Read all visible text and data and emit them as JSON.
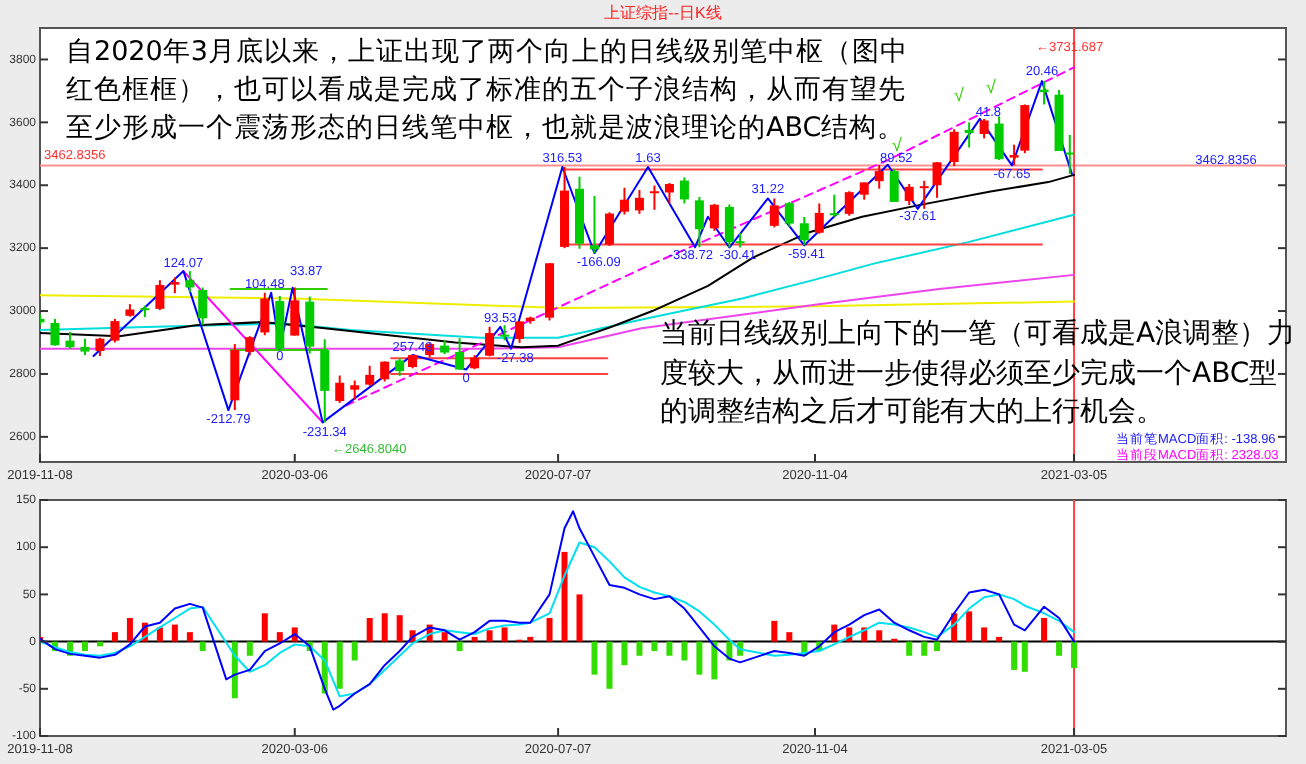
{
  "chart_data": [
    {
      "type": "candlestick",
      "title": "上证综指--日K线",
      "x": [
        "2019-11-08",
        "2019-11-15",
        "2019-11-22",
        "2019-11-29",
        "2019-12-06",
        "2019-12-13",
        "2019-12-20",
        "2019-12-27",
        "2020-01-03",
        "2020-01-10",
        "2020-01-17",
        "2020-01-23",
        "2020-02-07",
        "2020-02-14",
        "2020-02-21",
        "2020-02-28",
        "2020-03-06",
        "2020-03-13",
        "2020-03-20",
        "2020-03-27",
        "2020-04-03",
        "2020-04-10",
        "2020-04-17",
        "2020-04-24",
        "2020-04-30",
        "2020-05-08",
        "2020-05-15",
        "2020-05-22",
        "2020-05-29",
        "2020-06-05",
        "2020-06-12",
        "2020-06-19",
        "2020-06-24",
        "2020-07-03",
        "2020-07-10",
        "2020-07-17",
        "2020-07-24",
        "2020-07-31",
        "2020-08-07",
        "2020-08-14",
        "2020-08-21",
        "2020-08-28",
        "2020-09-04",
        "2020-09-11",
        "2020-09-18",
        "2020-09-25",
        "2020-09-30",
        "2020-10-16",
        "2020-10-23",
        "2020-10-30",
        "2020-11-06",
        "2020-11-13",
        "2020-11-20",
        "2020-11-27",
        "2020-12-04",
        "2020-12-11",
        "2020-12-18",
        "2020-12-25",
        "2020-12-31",
        "2021-01-08",
        "2021-01-15",
        "2021-01-22",
        "2021-01-29",
        "2021-02-05",
        "2021-02-10",
        "2021-02-19",
        "2021-02-26",
        "2021-03-03"
      ],
      "ohlc": [
        [
          2975,
          2990,
          2955,
          2964
        ],
        [
          2962,
          2975,
          2890,
          2891
        ],
        [
          2906,
          2934,
          2880,
          2885
        ],
        [
          2886,
          2912,
          2860,
          2871
        ],
        [
          2873,
          2915,
          2857,
          2912
        ],
        [
          2906,
          2975,
          2900,
          2968
        ],
        [
          2985,
          3022,
          2982,
          3005
        ],
        [
          3009,
          3017,
          2981,
          3005
        ],
        [
          3007,
          3098,
          3003,
          3083
        ],
        [
          3084,
          3107,
          3057,
          3092
        ],
        [
          3098,
          3127,
          3060,
          3075
        ],
        [
          3067,
          3075,
          2955,
          2977
        ],
        [
          2716,
          2895,
          2685,
          2876
        ],
        [
          2870,
          2920,
          2859,
          2917
        ],
        [
          2932,
          3058,
          2923,
          3040
        ],
        [
          3032,
          3048,
          2878,
          2880
        ],
        [
          2922,
          3075,
          2922,
          3034
        ],
        [
          3030,
          3046,
          2865,
          2887
        ],
        [
          2876,
          2910,
          2646,
          2746
        ],
        [
          2714,
          2795,
          2708,
          2772
        ],
        [
          2750,
          2779,
          2718,
          2764
        ],
        [
          2766,
          2826,
          2763,
          2797
        ],
        [
          2783,
          2840,
          2776,
          2839
        ],
        [
          2843,
          2851,
          2794,
          2809
        ],
        [
          2822,
          2860,
          2818,
          2860
        ],
        [
          2860,
          2898,
          2853,
          2895
        ],
        [
          2890,
          2907,
          2863,
          2868
        ],
        [
          2870,
          2914,
          2813,
          2814
        ],
        [
          2818,
          2860,
          2815,
          2852
        ],
        [
          2858,
          2950,
          2856,
          2930
        ],
        [
          2925,
          2955,
          2907,
          2920
        ],
        [
          2911,
          2968,
          2899,
          2967
        ],
        [
          2968,
          2982,
          2960,
          2979
        ],
        [
          2979,
          3152,
          2970,
          3152
        ],
        [
          3204,
          3458,
          3200,
          3383
        ],
        [
          3389,
          3427,
          3198,
          3214
        ],
        [
          3209,
          3366,
          3184,
          3196
        ],
        [
          3212,
          3314,
          3207,
          3310
        ],
        [
          3316,
          3392,
          3307,
          3354
        ],
        [
          3320,
          3385,
          3309,
          3360
        ],
        [
          3380,
          3399,
          3322,
          3381
        ],
        [
          3377,
          3407,
          3342,
          3404
        ],
        [
          3415,
          3425,
          3342,
          3355
        ],
        [
          3352,
          3363,
          3203,
          3260
        ],
        [
          3263,
          3341,
          3255,
          3338
        ],
        [
          3331,
          3339,
          3202,
          3219
        ],
        [
          3222,
          3248,
          3202,
          3218
        ],
        [
          3271,
          3358,
          3266,
          3336
        ],
        [
          3343,
          3347,
          3268,
          3278
        ],
        [
          3279,
          3299,
          3209,
          3225
        ],
        [
          3249,
          3342,
          3246,
          3312
        ],
        [
          3311,
          3370,
          3300,
          3310
        ],
        [
          3309,
          3381,
          3303,
          3378
        ],
        [
          3370,
          3409,
          3354,
          3409
        ],
        [
          3413,
          3465,
          3389,
          3445
        ],
        [
          3445,
          3452,
          3347,
          3347
        ],
        [
          3350,
          3404,
          3337,
          3395
        ],
        [
          3393,
          3414,
          3325,
          3397
        ],
        [
          3400,
          3474,
          3360,
          3473
        ],
        [
          3474,
          3578,
          3461,
          3570
        ],
        [
          3576,
          3600,
          3520,
          3566
        ],
        [
          3563,
          3611,
          3549,
          3606
        ],
        [
          3596,
          3619,
          3480,
          3483
        ],
        [
          3488,
          3529,
          3463,
          3496
        ],
        [
          3510,
          3657,
          3502,
          3655
        ],
        [
          3704,
          3731,
          3657,
          3696
        ],
        [
          3688,
          3703,
          3509,
          3509
        ],
        [
          3504,
          3560,
          3436,
          3502
        ]
      ],
      "colors": [
        "#00cc00",
        "#00cc00",
        "#00cc00",
        "#00cc00",
        "#ff0000",
        "#ff0000",
        "#ff0000",
        "#00cc00",
        "#ff0000",
        "#ff0000",
        "#00cc00",
        "#00cc00",
        "#ff0000",
        "#ff0000",
        "#ff0000",
        "#00cc00",
        "#ff0000",
        "#00cc00",
        "#00cc00",
        "#ff0000",
        "#ff0000",
        "#ff0000",
        "#ff0000",
        "#00cc00",
        "#ff0000",
        "#ff0000",
        "#00cc00",
        "#00cc00",
        "#ff0000",
        "#ff0000",
        "#00cc00",
        "#ff0000",
        "#ff0000",
        "#ff0000",
        "#ff0000",
        "#00cc00",
        "#00cc00",
        "#ff0000",
        "#ff0000",
        "#ff0000",
        "#ff0000",
        "#ff0000",
        "#00cc00",
        "#00cc00",
        "#ff0000",
        "#00cc00",
        "#00cc00",
        "#ff0000",
        "#00cc00",
        "#00cc00",
        "#ff0000",
        "#00cc00",
        "#ff0000",
        "#ff0000",
        "#ff0000",
        "#00cc00",
        "#ff0000",
        "#ff0000",
        "#ff0000",
        "#ff0000",
        "#00cc00",
        "#ff0000",
        "#00cc00",
        "#ff0000",
        "#ff0000",
        "#00cc00",
        "#00cc00",
        "#00cc00"
      ],
      "series": [
        {
          "type": "line",
          "color": "#eeee00",
          "x": [
            "2019-11-08",
            "2020-03-06",
            "2020-07-07",
            "2020-11-04",
            "2021-03-05"
          ],
          "values": [
            3050,
            3040,
            3010,
            3015,
            3030
          ]
        },
        {
          "type": "line",
          "color": "#ee44ee",
          "x": [
            "2019-11-08",
            "2020-06-01",
            "2020-07-07",
            "2020-08-15",
            "2020-11-04",
            "2021-01-01",
            "2021-03-05"
          ],
          "values": [
            2880,
            2880,
            2885,
            2945,
            3020,
            3070,
            3115
          ]
        },
        {
          "type": "line",
          "color": "#00dddd",
          "x": [
            "2019-11-08",
            "2020-01-01",
            "2020-03-01",
            "2020-04-01",
            "2020-06-01",
            "2020-07-07",
            "2020-08-20",
            "2020-10-01",
            "2020-11-04",
            "2020-12-01",
            "2021-01-15",
            "2021-03-05"
          ],
          "values": [
            2940,
            2950,
            2960,
            2940,
            2915,
            2915,
            2980,
            3040,
            3100,
            3150,
            3220,
            3306
          ]
        },
        {
          "type": "line",
          "color": "#000000",
          "x": [
            "2019-11-08",
            "2019-12-15",
            "2020-01-20",
            "2020-02-20",
            "2020-03-20",
            "2020-05-20",
            "2020-06-20",
            "2020-07-07",
            "2020-08-01",
            "2020-08-20",
            "2020-09-15",
            "2020-10-06",
            "2020-11-01",
            "2020-11-26",
            "2020-12-25",
            "2021-01-25",
            "2021-02-21",
            "2021-03-05"
          ],
          "values": [
            2930,
            2920,
            2955,
            2965,
            2945,
            2900,
            2885,
            2890,
            2950,
            3000,
            3080,
            3170,
            3250,
            3300,
            3340,
            3380,
            3410,
            3433
          ]
        },
        {
          "type": "line",
          "color": "#33cc00",
          "x": [
            "2020-02-05",
            "2020-03-21"
          ],
          "values": [
            3070,
            3070
          ]
        },
        {
          "type": "line",
          "color": "#33cc00",
          "x": [
            "2020-02-05",
            "2020-03-21"
          ],
          "values": [
            2876,
            2876
          ]
        },
        {
          "type": "line",
          "color": "#ff4040",
          "x": [
            "2020-04-20",
            "2020-07-30"
          ],
          "values": [
            2850,
            2850
          ]
        },
        {
          "type": "line",
          "color": "#ff4040",
          "x": [
            "2020-04-20",
            "2020-07-30"
          ],
          "values": [
            2800,
            2800
          ]
        },
        {
          "type": "line",
          "color": "#ff4040",
          "x": [
            "2020-07-10",
            "2021-02-18"
          ],
          "values": [
            3450,
            3450
          ]
        },
        {
          "type": "line",
          "color": "#ff4040",
          "x": [
            "2020-07-10",
            "2021-02-18"
          ],
          "values": [
            3212,
            3212
          ]
        },
        {
          "type": "line",
          "color": "#ff00ff",
          "x": [
            "2020-01-14",
            "2020-03-19"
          ],
          "values": [
            3127,
            2646
          ]
        },
        {
          "type": "line",
          "color": "#ff00ff",
          "line_style": "dashed",
          "x": [
            "2020-03-30",
            "2020-08-20",
            "2020-12-08",
            "2021-03-05"
          ],
          "values": [
            2700,
            3150,
            3480,
            3775
          ]
        },
        {
          "type": "line",
          "color": "#0000ff",
          "x": [
            "2019-12-03",
            "2020-01-14",
            "2020-02-04",
            "2020-02-24",
            "2020-02-28",
            "2020-03-05",
            "2020-03-19",
            "2020-04-30",
            "2020-05-25",
            "2020-06-10",
            "2020-06-15",
            "2020-07-09",
            "2020-07-24",
            "2020-08-18",
            "2020-09-09",
            "2020-09-15",
            "2020-09-25",
            "2020-10-13",
            "2020-10-30",
            "2020-12-08",
            "2020-12-22",
            "2021-01-20",
            "2021-02-04",
            "2021-02-18",
            "2021-03-04"
          ],
          "values": [
            2857,
            3127,
            2685,
            3058,
            2880,
            3074,
            2646,
            2860,
            2814,
            2950,
            2880,
            3458,
            3184,
            3458,
            3203,
            3300,
            3202,
            3358,
            3209,
            3465,
            3325,
            3611,
            3463,
            3731,
            3436
          ]
        }
      ],
      "xlim": [
        "2019-11-08",
        "2021-06-12"
      ],
      "ylim": [
        2520,
        3900
      ],
      "xticks": [
        "2019-11-08",
        "2020-03-06",
        "2020-07-07",
        "2020-11-04",
        "2021-03-05"
      ],
      "yticks": [
        2600,
        2800,
        3000,
        3200,
        3400,
        3600,
        3800
      ],
      "ref_lines": [
        {
          "axis": "y",
          "value": 3462.8356,
          "label": "3462.8356",
          "color": "#ff9090"
        },
        {
          "axis": "x",
          "value": "2021-03-05",
          "color": "#ff4040"
        }
      ],
      "annotations": [
        "自2020年3月底以来，上证出现了两个向上的日线级别笔中枢（图中红色框框），也可以看成是完成了标准的五个子浪结构，从而有望先至少形成一个震荡形态的日线笔中枢，也就是波浪理论的ABC结构。",
        "当前日线级别上向下的一笔（可看成是A浪调整）力度较大，从而进一步使得必须至少完成一个ABC型的调整结构之后才可能有大的上行机会。",
        "当前笔MACD面积: -138.96",
        "当前段MACD面积: 2328.03",
        "←3731.687",
        "←2646.8040",
        "√",
        "√",
        "√",
        "33.87",
        {
          "text": "124.07",
          "x": "2020-01-14",
          "y": 3150
        },
        {
          "text": "-212.79",
          "x": "2020-02-04",
          "y": 2655
        },
        {
          "text": "104.48",
          "x": "2020-02-21",
          "y": 3085
        },
        {
          "text": "0",
          "x": "2020-02-28",
          "y": 2855
        },
        {
          "text": "-231.34",
          "x": "2020-03-20",
          "y": 2615
        },
        {
          "text": "257.43",
          "x": "2020-04-30",
          "y": 2885
        },
        {
          "text": "0",
          "x": "2020-05-25",
          "y": 2785
        },
        {
          "text": "93.53",
          "x": "2020-06-10",
          "y": 2975
        },
        {
          "text": "-27.38",
          "x": "2020-06-17",
          "y": 2850
        },
        {
          "text": "316.53",
          "x": "2020-07-09",
          "y": 3485
        },
        {
          "text": "-166.09",
          "x": "2020-07-26",
          "y": 3155
        },
        {
          "text": "1.63",
          "x": "2020-08-18",
          "y": 3485
        },
        {
          "text": "-338.72",
          "x": "2020-09-07",
          "y": 3175
        },
        {
          "text": "-30.41",
          "x": "2020-09-29",
          "y": 3175
        },
        {
          "text": "31.22",
          "x": "2020-10-13",
          "y": 3385
        },
        {
          "text": "-59.41",
          "x": "2020-10-31",
          "y": 3180
        },
        {
          "text": "89.52",
          "x": "2020-12-12",
          "y": 3485
        },
        {
          "text": "-37.61",
          "x": "2020-12-22",
          "y": 3300
        },
        {
          "text": "41.8",
          "x": "2021-01-24",
          "y": 3630
        },
        {
          "text": "-67.65",
          "x": "2021-02-04",
          "y": 3435
        },
        {
          "text": "20.46",
          "x": "2021-02-18",
          "y": 3760
        },
        {
          "text": "3462.8356",
          "x": "2021-05-15",
          "y": 3478
        }
      ]
    },
    {
      "type": "bar",
      "x": [
        "2019-11-08",
        "2019-11-15",
        "2019-11-22",
        "2019-11-29",
        "2019-12-06",
        "2019-12-13",
        "2019-12-20",
        "2019-12-27",
        "2020-01-03",
        "2020-01-10",
        "2020-01-17",
        "2020-01-23",
        "2020-02-07",
        "2020-02-14",
        "2020-02-21",
        "2020-02-28",
        "2020-03-06",
        "2020-03-13",
        "2020-03-20",
        "2020-03-27",
        "2020-04-03",
        "2020-04-10",
        "2020-04-17",
        "2020-04-24",
        "2020-04-30",
        "2020-05-08",
        "2020-05-15",
        "2020-05-22",
        "2020-05-29",
        "2020-06-05",
        "2020-06-12",
        "2020-06-19",
        "2020-06-24",
        "2020-07-03",
        "2020-07-10",
        "2020-07-17",
        "2020-07-24",
        "2020-07-31",
        "2020-08-07",
        "2020-08-14",
        "2020-08-21",
        "2020-08-28",
        "2020-09-04",
        "2020-09-11",
        "2020-09-18",
        "2020-09-25",
        "2020-09-30",
        "2020-10-16",
        "2020-10-23",
        "2020-10-30",
        "2020-11-06",
        "2020-11-13",
        "2020-11-20",
        "2020-11-27",
        "2020-12-04",
        "2020-12-11",
        "2020-12-18",
        "2020-12-25",
        "2020-12-31",
        "2021-01-08",
        "2021-01-15",
        "2021-01-22",
        "2021-01-29",
        "2021-02-05",
        "2021-02-10",
        "2021-02-19",
        "2021-02-26",
        "2021-03-05"
      ],
      "series": [
        {
          "type": "bar",
          "values": [
            5,
            -10,
            -15,
            -10,
            -5,
            10,
            25,
            20,
            15,
            18,
            10,
            -10,
            -60,
            -15,
            30,
            10,
            15,
            -10,
            -55,
            -50,
            -20,
            25,
            30,
            28,
            12,
            18,
            10,
            -10,
            5,
            12,
            15,
            2,
            5,
            25,
            95,
            50,
            -35,
            -50,
            -25,
            -15,
            -10,
            -15,
            -20,
            -35,
            -40,
            -20,
            -15,
            22,
            10,
            -15,
            -10,
            18,
            15,
            15,
            12,
            3,
            -15,
            -15,
            -10,
            30,
            32,
            15,
            5,
            -30,
            -32,
            25,
            -15,
            -28
          ],
          "colors": [
            "#ff0000",
            "#33dd00",
            "#33dd00",
            "#33dd00",
            "#33dd00",
            "#ff0000",
            "#ff0000",
            "#ff0000",
            "#ff0000",
            "#ff0000",
            "#ff0000",
            "#33dd00",
            "#33dd00",
            "#33dd00",
            "#ff0000",
            "#ff0000",
            "#ff0000",
            "#33dd00",
            "#33dd00",
            "#33dd00",
            "#33dd00",
            "#ff0000",
            "#ff0000",
            "#ff0000",
            "#ff0000",
            "#ff0000",
            "#ff0000",
            "#33dd00",
            "#ff0000",
            "#ff0000",
            "#ff0000",
            "#ff0000",
            "#ff0000",
            "#ff0000",
            "#ff0000",
            "#ff0000",
            "#33dd00",
            "#33dd00",
            "#33dd00",
            "#33dd00",
            "#33dd00",
            "#33dd00",
            "#33dd00",
            "#33dd00",
            "#33dd00",
            "#33dd00",
            "#33dd00",
            "#ff0000",
            "#ff0000",
            "#33dd00",
            "#33dd00",
            "#ff0000",
            "#ff0000",
            "#ff0000",
            "#ff0000",
            "#ff0000",
            "#33dd00",
            "#33dd00",
            "#33dd00",
            "#ff0000",
            "#ff0000",
            "#ff0000",
            "#ff0000",
            "#33dd00",
            "#33dd00",
            "#ff0000",
            "#33dd00",
            "#33dd00"
          ]
        },
        {
          "type": "line",
          "color": "#00e0f0",
          "values": [
            0,
            -6,
            -11,
            -14,
            -15,
            -12,
            -5,
            5,
            15,
            25,
            35,
            37,
            -15,
            -32,
            -25,
            -12,
            -3,
            -5,
            -20,
            -58,
            -55,
            -45,
            -30,
            -15,
            -2,
            8,
            12,
            10,
            8,
            14,
            17,
            18,
            20,
            30,
            70,
            105,
            100,
            85,
            68,
            58,
            52,
            48,
            42,
            32,
            18,
            2,
            -8,
            -15,
            -14,
            -12,
            -10,
            -3,
            5,
            12,
            20,
            18,
            15,
            10,
            5,
            18,
            35,
            47,
            50,
            45,
            38,
            30,
            22,
            10
          ]
        },
        {
          "type": "line",
          "color": "#0000ff",
          "x": [
            "2019-11-08",
            "2019-11-15",
            "2019-11-22",
            "2019-11-29",
            "2019-12-06",
            "2019-12-13",
            "2019-12-20",
            "2019-12-27",
            "2020-01-03",
            "2020-01-10",
            "2020-01-17",
            "2020-01-23",
            "2020-02-03",
            "2020-02-07",
            "2020-02-14",
            "2020-02-21",
            "2020-02-28",
            "2020-03-06",
            "2020-03-13",
            "2020-03-20",
            "2020-03-24",
            "2020-03-27",
            "2020-04-03",
            "2020-04-10",
            "2020-04-17",
            "2020-04-24",
            "2020-04-30",
            "2020-05-08",
            "2020-05-15",
            "2020-05-22",
            "2020-05-29",
            "2020-06-05",
            "2020-06-12",
            "2020-06-19",
            "2020-06-24",
            "2020-07-03",
            "2020-07-10",
            "2020-07-14",
            "2020-07-17",
            "2020-07-24",
            "2020-07-31",
            "2020-08-07",
            "2020-08-14",
            "2020-08-21",
            "2020-08-28",
            "2020-09-04",
            "2020-09-11",
            "2020-09-18",
            "2020-09-25",
            "2020-09-30",
            "2020-10-16",
            "2020-10-23",
            "2020-10-30",
            "2020-11-06",
            "2020-11-13",
            "2020-11-20",
            "2020-11-27",
            "2020-12-04",
            "2020-12-11",
            "2020-12-18",
            "2020-12-25",
            "2020-12-31",
            "2021-01-08",
            "2021-01-15",
            "2021-01-22",
            "2021-01-29",
            "2021-02-05",
            "2021-02-10",
            "2021-02-19",
            "2021-02-26",
            "2021-03-05"
          ],
          "values": [
            3,
            -8,
            -13,
            -15,
            -17,
            -14,
            -3,
            16,
            20,
            35,
            40,
            36,
            -40,
            -35,
            -30,
            -10,
            -2,
            8,
            -5,
            -50,
            -72,
            -68,
            -55,
            -45,
            -25,
            -10,
            5,
            15,
            12,
            2,
            10,
            22,
            22,
            20,
            20,
            50,
            120,
            138,
            120,
            90,
            60,
            57,
            50,
            45,
            48,
            35,
            15,
            -5,
            -18,
            -22,
            -10,
            -12,
            -15,
            -5,
            10,
            18,
            28,
            34,
            20,
            12,
            5,
            2,
            30,
            52,
            55,
            50,
            18,
            12,
            37,
            25,
            0
          ]
        }
      ],
      "xlim": [
        "2019-11-08",
        "2021-06-12"
      ],
      "ylim": [
        -100,
        150
      ],
      "xticks": [
        "2019-11-08",
        "2020-03-06",
        "2020-07-07",
        "2020-11-04",
        "2021-03-05"
      ],
      "yticks": [
        -100,
        -50,
        0,
        50,
        100,
        150
      ],
      "ref_lines": [
        {
          "axis": "y",
          "value": 0,
          "color": "#000000"
        },
        {
          "axis": "x",
          "value": "2021-03-05",
          "color": "#ff4040"
        }
      ]
    }
  ]
}
